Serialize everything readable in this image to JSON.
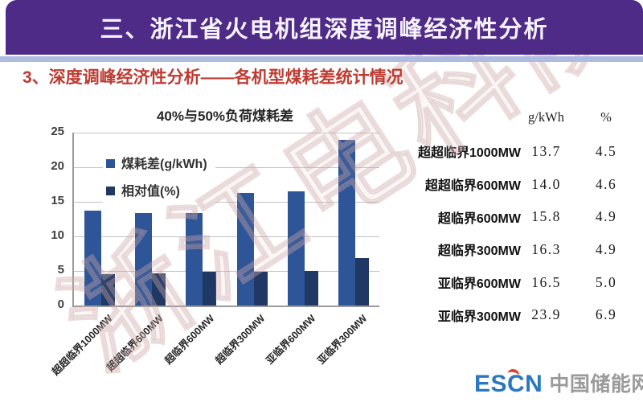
{
  "header": {
    "title": "三、浙江省火电机组深度调峰经济性分析"
  },
  "subtitle": {
    "text": "3、深度调峰经济性分析——各机型煤耗差统计情况"
  },
  "chart_data": {
    "type": "bar",
    "title": "40%与50%负荷煤耗差",
    "categories": [
      "超超临界1000MW",
      "超超临界600MW",
      "超临界600MW",
      "超临界300MW",
      "亚临界600MW",
      "亚临界300MW"
    ],
    "series": [
      {
        "name": "煤耗差(g/kWh)",
        "color": "#2E5597",
        "values": [
          13.7,
          14.0,
          15.8,
          16.3,
          16.5,
          23.9
        ]
      },
      {
        "name": "相对值(%)",
        "color": "#1F3864",
        "values": [
          4.5,
          4.6,
          4.9,
          4.9,
          5.0,
          6.9
        ]
      }
    ],
    "ylim": [
      0,
      25
    ],
    "yticks": [
      0,
      5,
      10,
      15,
      20,
      25
    ],
    "grid": true,
    "legend_position": "upper-left-inside",
    "xlabel": "",
    "ylabel": ""
  },
  "table": {
    "headers": [
      "g/kWh",
      "%"
    ],
    "rows": [
      {
        "label": "超超临界1000MW",
        "gkwh": "13.7",
        "pct": "4.5"
      },
      {
        "label": "超超临界600MW",
        "gkwh": "14.0",
        "pct": "4.6"
      },
      {
        "label": "超临界600MW",
        "gkwh": "15.8",
        "pct": "4.9"
      },
      {
        "label": "超临界300MW",
        "gkwh": "16.3",
        "pct": "4.9"
      },
      {
        "label": "亚临界600MW",
        "gkwh": "16.5",
        "pct": "5.0"
      },
      {
        "label": "亚临界300MW",
        "gkwh": "23.9",
        "pct": "6.9"
      }
    ]
  },
  "watermark": {
    "text": "浙江电科院"
  },
  "footer": {
    "logo_en": "ESCN",
    "logo_cn": "中国储能网"
  },
  "colors": {
    "header_purple": "#4E2B86",
    "divider_blue": "#AEBCE2",
    "subtitle_red": "#BE3B31",
    "bar_blue": "#2E5597",
    "bar_navy": "#1F3864",
    "logo_blue": "#2A79BE",
    "logo_red": "#E2402E",
    "logo_gray": "#9A9A9A"
  }
}
